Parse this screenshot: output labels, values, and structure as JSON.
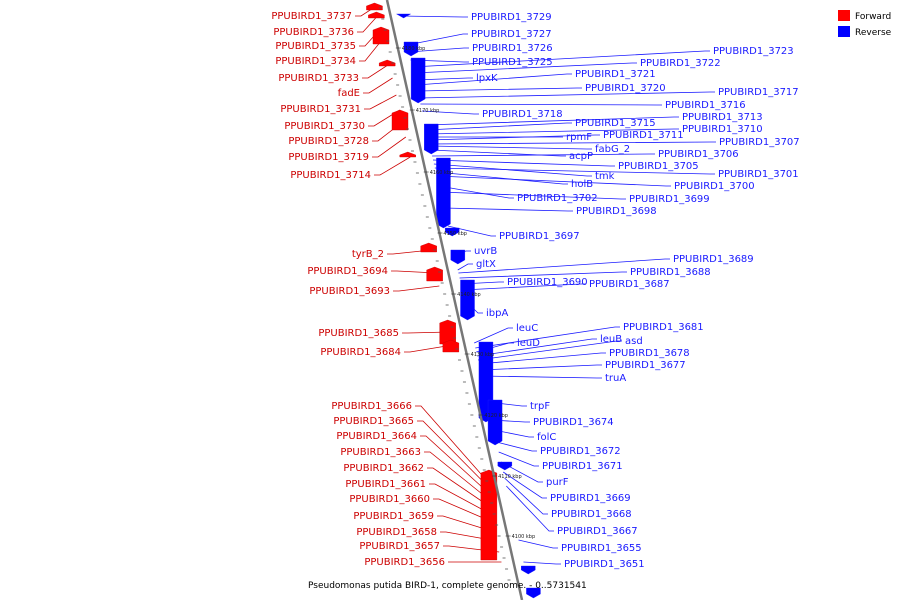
{
  "title": "Pseudomonas putida BIRD-1, complete genome. - 0..5731541",
  "legend": [
    {
      "name": "Forward",
      "color": "#ff0000"
    },
    {
      "name": "Reverse",
      "color": "#0000ff"
    }
  ],
  "colors": {
    "forward": "#cc0000",
    "reverse": "#1a1aff",
    "backbone": "#777777"
  },
  "scale_labels": [
    "4180 kbp",
    "4170 kbp",
    "4160 kbp",
    "4150 kbp",
    "4140 kbp",
    "4130 kbp",
    "4120 kbp",
    "4110 kbp",
    "4100 kbp"
  ],
  "forward_genes": [
    "PPUBIRD1_3737",
    "PPUBIRD1_3736",
    "PPUBIRD1_3735",
    "PPUBIRD1_3734",
    "PPUBIRD1_3733",
    "fadE",
    "PPUBIRD1_3731",
    "PPUBIRD1_3730",
    "PPUBIRD1_3728",
    "PPUBIRD1_3719",
    "PPUBIRD1_3714",
    "tyrB_2",
    "PPUBIRD1_3694",
    "PPUBIRD1_3693",
    "PPUBIRD1_3685",
    "PPUBIRD1_3684",
    "PPUBIRD1_3666",
    "PPUBIRD1_3665",
    "PPUBIRD1_3664",
    "PPUBIRD1_3663",
    "PPUBIRD1_3662",
    "PPUBIRD1_3661",
    "PPUBIRD1_3660",
    "PPUBIRD1_3659",
    "PPUBIRD1_3658",
    "PPUBIRD1_3657",
    "PPUBIRD1_3656"
  ],
  "reverse_genes": [
    "PPUBIRD1_3729",
    "PPUBIRD1_3727",
    "PPUBIRD1_3726",
    "PPUBIRD1_3725",
    "PPUBIRD1_3723",
    "PPUBIRD1_3722",
    "lpxK",
    "PPUBIRD1_3721",
    "PPUBIRD1_3720",
    "PPUBIRD1_3717",
    "PPUBIRD1_3716",
    "PPUBIRD1_3718",
    "PPUBIRD1_3713",
    "PPUBIRD1_3715",
    "PPUBIRD1_3710",
    "rpmF",
    "PPUBIRD1_3711",
    "PPUBIRD1_3707",
    "fabG_2",
    "acpP",
    "PPUBIRD1_3706",
    "PPUBIRD1_3705",
    "tmk",
    "PPUBIRD1_3701",
    "holB",
    "PPUBIRD1_3700",
    "PPUBIRD1_3702",
    "PPUBIRD1_3699",
    "PPUBIRD1_3698",
    "PPUBIRD1_3697",
    "uvrB",
    "gltX",
    "PPUBIRD1_3689",
    "PPUBIRD1_3688",
    "PPUBIRD1_3690",
    "PPUBIRD1_3687",
    "ibpA",
    "leuC",
    "PPUBIRD1_3681",
    "leuD",
    "leuB",
    "asd",
    "PPUBIRD1_3678",
    "PPUBIRD1_3677",
    "truA",
    "trpF",
    "PPUBIRD1_3674",
    "folC",
    "PPUBIRD1_3672",
    "PPUBIRD1_3671",
    "purF",
    "PPUBIRD1_3669",
    "PPUBIRD1_3668",
    "PPUBIRD1_3667",
    "PPUBIRD1_3655",
    "PPUBIRD1_3651"
  ]
}
